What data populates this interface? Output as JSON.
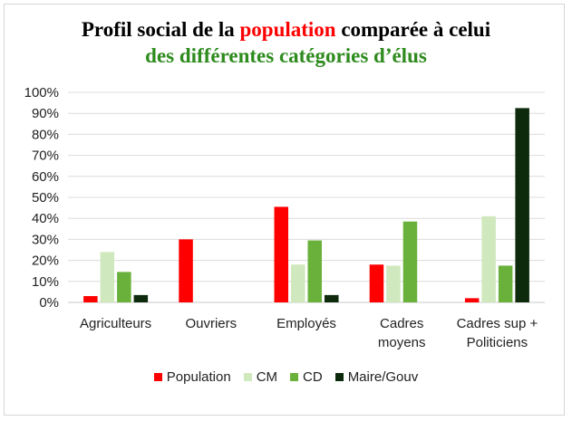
{
  "chart_data": {
    "type": "bar",
    "title_parts": [
      {
        "text": "Profil social de la ",
        "color": "#000000"
      },
      {
        "text": "population",
        "color": "#ff0000"
      },
      {
        "text": " comparée à celui",
        "color": "#000000"
      }
    ],
    "subtitle": "des différentes catégories d’élus",
    "categories": [
      [
        "Agriculteurs"
      ],
      [
        "Ouvriers"
      ],
      [
        "Employés"
      ],
      [
        "Cadres",
        "moyens"
      ],
      [
        "Cadres sup +",
        "Politiciens"
      ]
    ],
    "yticks": [
      "0%",
      "10%",
      "20%",
      "30%",
      "40%",
      "50%",
      "60%",
      "70%",
      "80%",
      "90%",
      "100%"
    ],
    "ylim": [
      0,
      100
    ],
    "grid": true,
    "legend_position": "bottom",
    "series": [
      {
        "name": "Population",
        "color": "#ff0000",
        "values": [
          3,
          30,
          45.5,
          18,
          2
        ]
      },
      {
        "name": "CM",
        "color": "#d0e8bd",
        "values": [
          24,
          0,
          18,
          17.5,
          41
        ]
      },
      {
        "name": "CD",
        "color": "#6ab13b",
        "values": [
          14.5,
          0,
          29.5,
          38.5,
          17.5
        ]
      },
      {
        "name": "Maire/Gouv",
        "color": "#0d2a0c",
        "values": [
          3.5,
          0,
          3.5,
          0,
          92.5
        ]
      }
    ]
  }
}
